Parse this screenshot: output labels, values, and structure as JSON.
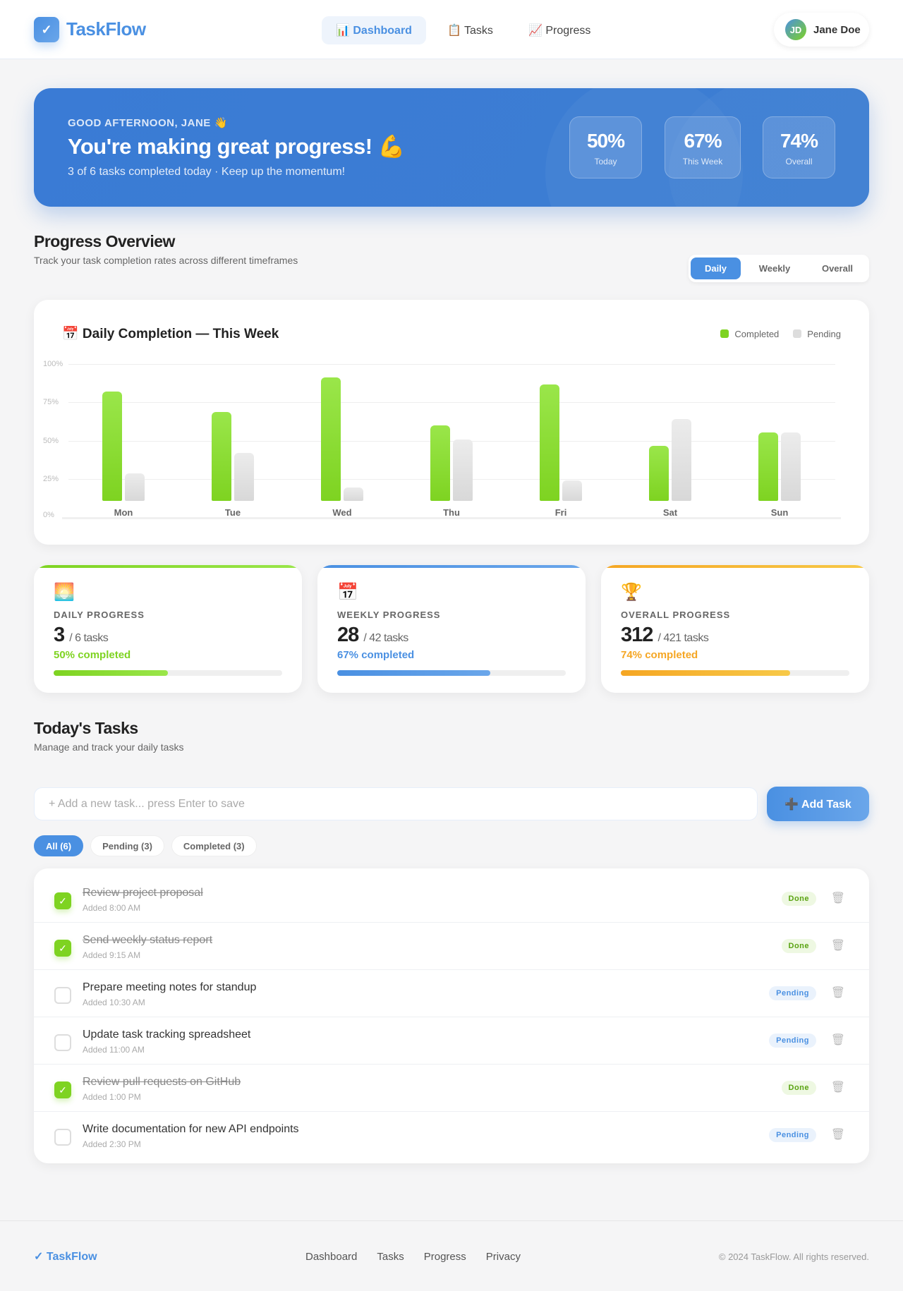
{
  "app": {
    "logo_icon": "checkmark-icon",
    "name": "TaskFlow"
  },
  "nav": [
    {
      "icon": "📊",
      "label": "Dashboard",
      "active": true
    },
    {
      "icon": "📋",
      "label": "Tasks"
    },
    {
      "icon": "📈",
      "label": "Progress"
    }
  ],
  "user": {
    "initials": "JD",
    "name": "Jane Doe"
  },
  "hero": {
    "greeting": "GOOD AFTERNOON, JANE 👋",
    "title": "You're making great progress! 💪",
    "subtitle": "3 of 6 tasks completed today · Keep up the momentum!",
    "stats": [
      {
        "value": "50%",
        "label": "Today"
      },
      {
        "value": "67%",
        "label": "This Week"
      },
      {
        "value": "74%",
        "label": "Overall"
      }
    ]
  },
  "overview": {
    "title": "Progress Overview",
    "subtitle": "Track your task completion rates across different timeframes",
    "toggle": [
      "Daily",
      "Weekly",
      "Overall"
    ],
    "active_toggle": "Daily"
  },
  "chart_data": {
    "type": "bar",
    "title": "📅 Daily Completion — This Week",
    "categories": [
      "Mon",
      "Tue",
      "Wed",
      "Thu",
      "Fri",
      "Sat",
      "Sun"
    ],
    "series": [
      {
        "name": "Completed",
        "color": "#7ed321",
        "values": [
          80,
          65,
          90,
          55,
          85,
          40,
          50
        ]
      },
      {
        "name": "Pending",
        "color": "#dddddd",
        "values": [
          20,
          35,
          10,
          45,
          15,
          60,
          50
        ]
      }
    ],
    "yticks": [
      "100%",
      "75%",
      "50%",
      "25%",
      "0%"
    ],
    "ylim": [
      0,
      100
    ],
    "grid": true,
    "legend": "top-right"
  },
  "stats": [
    {
      "icon": "🌅",
      "label": "DAILY PROGRESS",
      "value": "3",
      "total": "/ 6 tasks",
      "pct_text": "50% completed",
      "pct": 50,
      "color": "#7ed321",
      "gradient": "linear-gradient(90deg,#7ed321,#9ae64a)"
    },
    {
      "icon": "📅",
      "label": "WEEKLY PROGRESS",
      "value": "28",
      "total": "/ 42 tasks",
      "pct_text": "67% completed",
      "pct": 67,
      "color": "#4a90e2",
      "gradient": "linear-gradient(90deg,#4a90e2,#6aa6ea)"
    },
    {
      "icon": "🏆",
      "label": "OVERALL PROGRESS",
      "value": "312",
      "total": "/ 421 tasks",
      "pct_text": "74% completed",
      "pct": 74,
      "color": "#f5a623",
      "gradient": "linear-gradient(90deg,#f5a623,#f7c948)"
    }
  ],
  "tasks_section": {
    "title": "Today's Tasks",
    "subtitle": "Manage and track your daily tasks",
    "input_placeholder": "+ Add a new task... press Enter to save",
    "add_label": "➕ Add Task",
    "filters": [
      "All (6)",
      "Pending (3)",
      "Completed (3)"
    ]
  },
  "tasks": [
    {
      "title": "Review project proposal",
      "time": "Added 8:00 AM",
      "done": true,
      "status": "Done"
    },
    {
      "title": "Send weekly status report",
      "time": "Added 9:15 AM",
      "done": true,
      "status": "Done"
    },
    {
      "title": "Prepare meeting notes for standup",
      "time": "Added 10:30 AM",
      "done": false,
      "status": "Pending"
    },
    {
      "title": "Update task tracking spreadsheet",
      "time": "Added 11:00 AM",
      "done": false,
      "status": "Pending"
    },
    {
      "title": "Review pull requests on GitHub",
      "time": "Added 1:00 PM",
      "done": true,
      "status": "Done"
    },
    {
      "title": "Write documentation for new API endpoints",
      "time": "Added 2:30 PM",
      "done": false,
      "status": "Pending"
    }
  ],
  "footer": {
    "logo": "✓ TaskFlow",
    "links": [
      "Dashboard",
      "Tasks",
      "Progress",
      "Privacy"
    ],
    "copyright": "© 2024 TaskFlow. All rights reserved."
  }
}
